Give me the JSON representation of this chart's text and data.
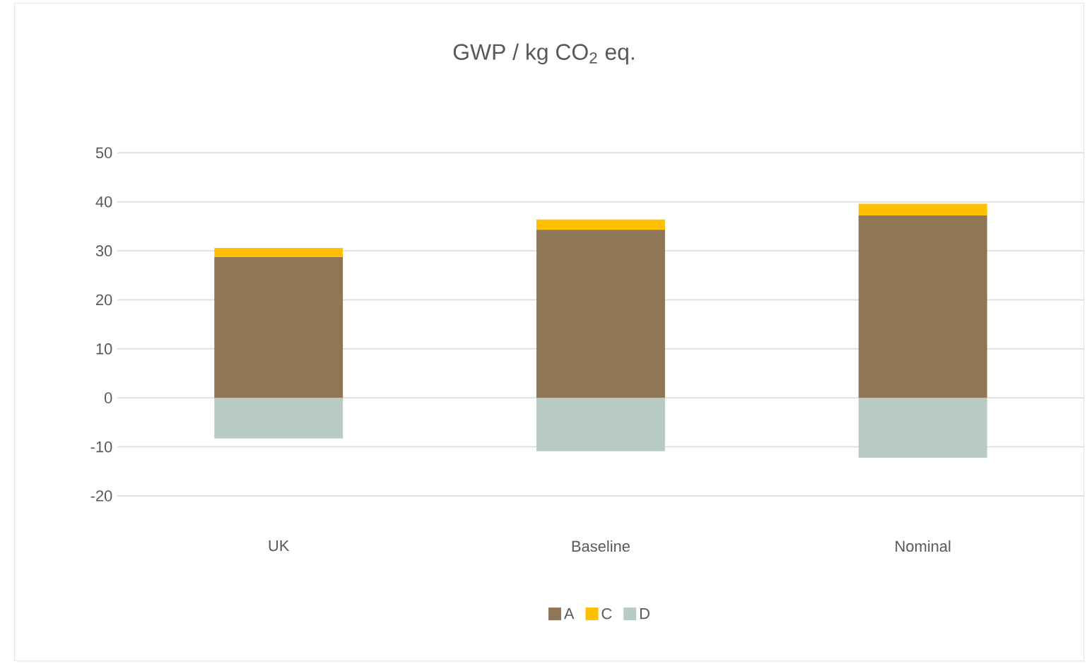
{
  "chart_data": {
    "type": "bar",
    "title": "GWP / kg CO$_{2}$ eq.",
    "stacked": true,
    "categories": [
      "UK",
      "Baseline",
      "Nominal"
    ],
    "series": [
      {
        "name": "A",
        "color": "#8f7657",
        "values": [
          28.7,
          34.3,
          37.2
        ]
      },
      {
        "name": "C",
        "color": "#ffc000",
        "values": [
          1.9,
          2.1,
          2.4
        ]
      },
      {
        "name": "D",
        "color": "#b7cbc2",
        "values": [
          -8.3,
          -10.9,
          -12.2
        ]
      }
    ],
    "ylim": [
      -20,
      50
    ],
    "yticks": [
      -20,
      -10,
      0,
      10,
      20,
      30,
      40,
      50
    ],
    "grid": "y",
    "legend": "bottom"
  }
}
